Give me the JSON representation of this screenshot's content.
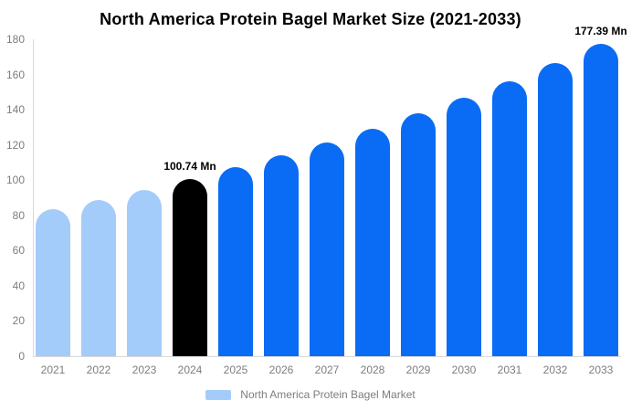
{
  "chart_data": {
    "type": "bar",
    "title": "North America Protein Bagel Market Size (2021-2033)",
    "categories": [
      "2021",
      "2022",
      "2023",
      "2024",
      "2025",
      "2026",
      "2027",
      "2028",
      "2029",
      "2030",
      "2031",
      "2032",
      "2033"
    ],
    "values": [
      83.3,
      88.7,
      94.5,
      100.74,
      107.2,
      114.1,
      121.5,
      129.4,
      137.8,
      146.8,
      156.3,
      166.4,
      177.39
    ],
    "unit": "Mn",
    "xlabel": "",
    "ylabel": "",
    "ylim": [
      0,
      180
    ],
    "y_ticks": [
      0,
      20,
      40,
      60,
      80,
      100,
      120,
      140,
      160,
      180
    ],
    "grid": false,
    "bar_colors": [
      "#A3CCFA",
      "#A3CCFA",
      "#A3CCFA",
      "#000000",
      "#0A6CF4",
      "#0A6CF4",
      "#0A6CF4",
      "#0A6CF4",
      "#0A6CF4",
      "#0A6CF4",
      "#0A6CF4",
      "#0A6CF4",
      "#0A6CF4"
    ],
    "colors": {
      "historical": "#A3CCFA",
      "base_year": "#000000",
      "forecast": "#0A6CF4",
      "axis_text": "#7d7d7d",
      "axis_line": "#d9d9d9"
    },
    "annotations": [
      {
        "category": "2024",
        "text": "100.74 Mn"
      },
      {
        "category": "2033",
        "text": "177.39 Mn"
      }
    ],
    "legend": {
      "position": "bottom",
      "label": "North America Protein Bagel Market",
      "swatch_color": "#A3CCFA"
    }
  }
}
